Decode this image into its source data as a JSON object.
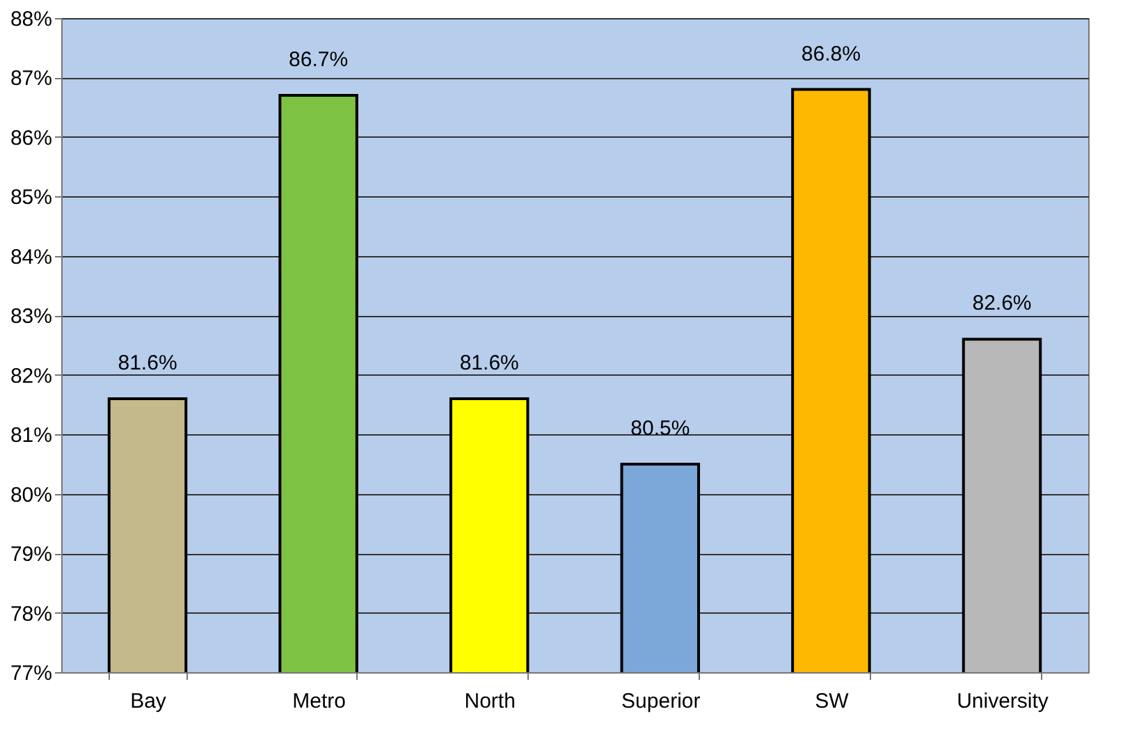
{
  "chart_data": {
    "type": "bar",
    "categories": [
      "Bay",
      "Metro",
      "North",
      "Superior",
      "SW",
      "University"
    ],
    "values": [
      81.6,
      86.7,
      81.6,
      80.5,
      86.8,
      82.6
    ],
    "colors": [
      "#c4b98a",
      "#7dc242",
      "#ffff00",
      "#7ba7d9",
      "#ffb800",
      "#b8b8b8"
    ],
    "value_labels": [
      "81.6%",
      "86.7%",
      "81.6%",
      "80.5%",
      "86.8%",
      "82.6%"
    ],
    "ylim": [
      77,
      88
    ],
    "yticks": [
      {
        "value": 77,
        "label": "77%"
      },
      {
        "value": 78,
        "label": "78%"
      },
      {
        "value": 79,
        "label": "79%"
      },
      {
        "value": 80,
        "label": "80%"
      },
      {
        "value": 81,
        "label": "81%"
      },
      {
        "value": 82,
        "label": "82%"
      },
      {
        "value": 83,
        "label": "83%"
      },
      {
        "value": 84,
        "label": "84%"
      },
      {
        "value": 85,
        "label": "85%"
      },
      {
        "value": 86,
        "label": "86%"
      },
      {
        "value": 87,
        "label": "87%"
      },
      {
        "value": 88,
        "label": "88%"
      }
    ],
    "grid": "y"
  }
}
